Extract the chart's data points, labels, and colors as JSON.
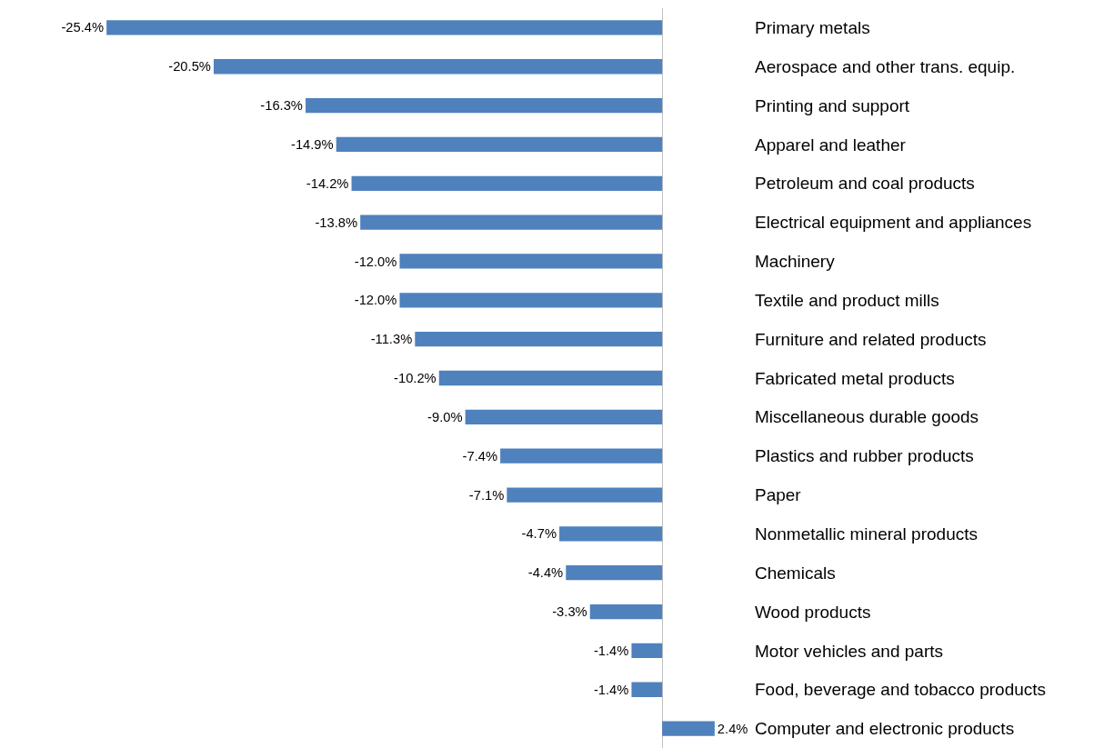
{
  "chart_data": {
    "type": "bar",
    "orientation": "horizontal",
    "color": "#4f81bd",
    "categories": [
      "Primary metals",
      "Aerospace and other trans. equip.",
      "Printing and support",
      "Apparel and leather",
      "Petroleum and coal products",
      "Electrical equipment and appliances",
      "Machinery",
      "Textile and product mills",
      "Furniture and related products",
      "Fabricated metal products",
      "Miscellaneous durable goods",
      "Plastics and rubber products",
      "Paper",
      "Nonmetallic mineral products",
      "Chemicals",
      "Wood products",
      "Motor vehicles and parts",
      "Food, beverage and tobacco products",
      "Computer and electronic products"
    ],
    "values": [
      -25.4,
      -20.5,
      -16.3,
      -14.9,
      -14.2,
      -13.8,
      -12.0,
      -12.0,
      -11.3,
      -10.2,
      -9.0,
      -7.4,
      -7.1,
      -4.7,
      -4.4,
      -3.3,
      -1.4,
      -1.4,
      2.4
    ],
    "value_labels": [
      "-25.4%",
      "-20.5%",
      "-16.3%",
      "-14.9%",
      "-14.2%",
      "-13.8%",
      "-12.0%",
      "-12.0%",
      "-11.3%",
      "-10.2%",
      "-9.0%",
      "-7.4%",
      "-7.1%",
      "-4.7%",
      "-4.4%",
      "-3.3%",
      "-1.4%",
      "-1.4%",
      "2.4%"
    ]
  }
}
